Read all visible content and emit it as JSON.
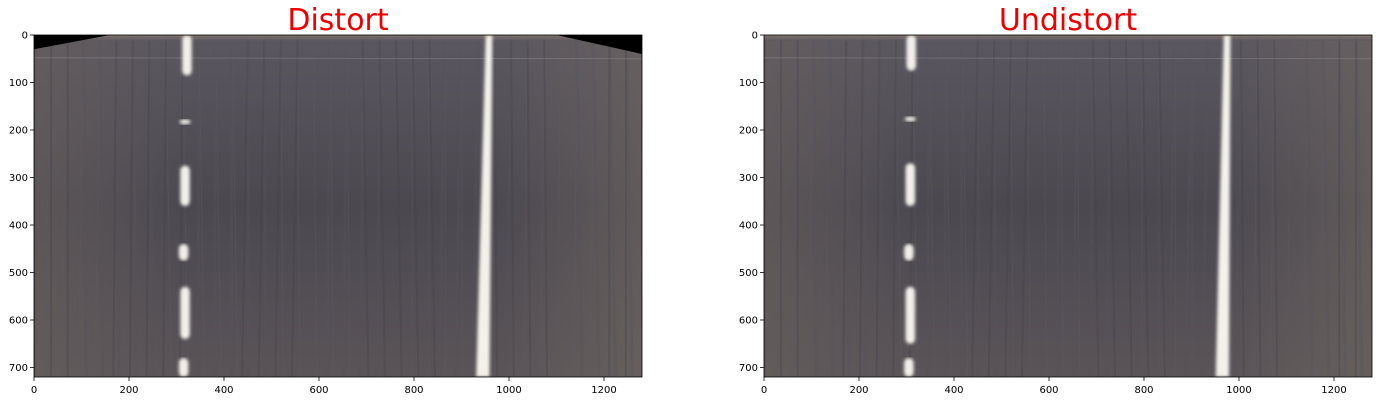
{
  "chart_data": [
    {
      "type": "image",
      "title": "Distort",
      "title_color": "#ee0000",
      "xlim": [
        0,
        1280
      ],
      "ylim": [
        720,
        0
      ],
      "xticks": [
        0,
        200,
        400,
        600,
        800,
        1000,
        1200
      ],
      "yticks": [
        0,
        100,
        200,
        300,
        400,
        500,
        600,
        700
      ],
      "road_color": "#4e4b53",
      "lane_lines": {
        "left_dashes": [
          {
            "x": 322,
            "y0": 0,
            "y1": 85
          },
          {
            "x": 318,
            "y0": 178,
            "y1": 188
          },
          {
            "x": 318,
            "y0": 275,
            "y1": 360
          },
          {
            "x": 315,
            "y0": 440,
            "y1": 475
          },
          {
            "x": 318,
            "y0": 530,
            "y1": 640
          },
          {
            "x": 315,
            "y0": 680,
            "y1": 720
          }
        ],
        "right_line": {
          "x_top": 958,
          "x_bottom": 945
        }
      },
      "black_corners": true
    },
    {
      "type": "image",
      "title": "Undistort",
      "title_color": "#ee0000",
      "xlim": [
        0,
        1280
      ],
      "ylim": [
        720,
        0
      ],
      "xticks": [
        0,
        200,
        400,
        600,
        800,
        1000,
        1200
      ],
      "yticks": [
        0,
        100,
        200,
        300,
        400,
        500,
        600,
        700
      ],
      "road_color": "#504c54",
      "lane_lines": {
        "left_dashes": [
          {
            "x": 310,
            "y0": 0,
            "y1": 75
          },
          {
            "x": 308,
            "y0": 172,
            "y1": 182
          },
          {
            "x": 308,
            "y0": 270,
            "y1": 360
          },
          {
            "x": 305,
            "y0": 440,
            "y1": 475
          },
          {
            "x": 308,
            "y0": 530,
            "y1": 650
          },
          {
            "x": 305,
            "y0": 680,
            "y1": 720
          }
        ],
        "right_line": {
          "x_top": 975,
          "x_bottom": 965
        }
      },
      "black_corners": false
    }
  ]
}
